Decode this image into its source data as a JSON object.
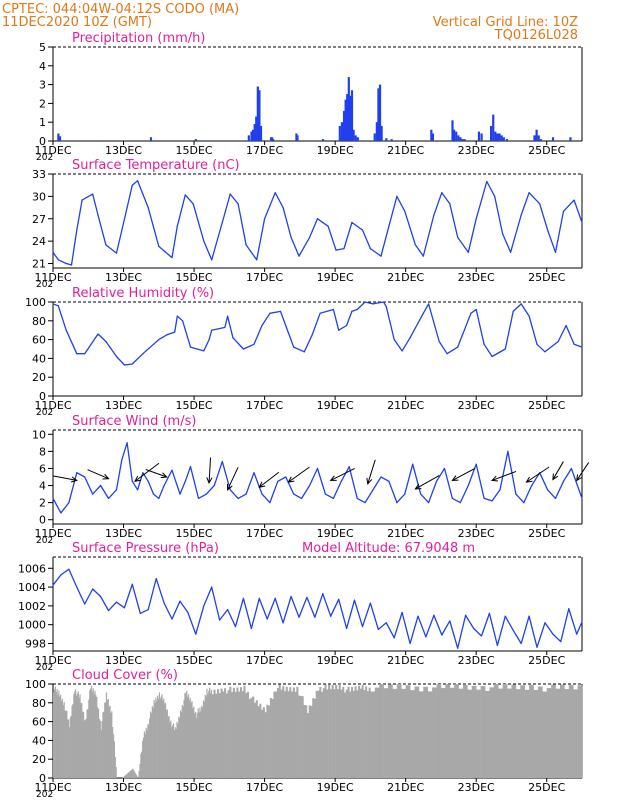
{
  "header": {
    "line1": "CPTEC:   044:04W-04:12S   CODO (MA)",
    "line2": "11DEC2020 10Z (GMT)",
    "grid_note": "Vertical Grid Line: 10Z",
    "run_code": "TQ0126L028"
  },
  "model_altitude": "Model Altitude: 67.9048 m",
  "colors": {
    "header_orange": "#e07818",
    "title_magenta": "#e0209a",
    "series_blue": "#2040ee",
    "cloud_gray": "#a8a8a8",
    "wind_arrow": "#000000"
  },
  "x_axis": {
    "ticks": [
      "11DEC",
      "13DEC",
      "15DEC",
      "17DEC",
      "19DEC",
      "21DEC",
      "23DEC",
      "25DEC"
    ],
    "year_fragment": "202"
  },
  "chart_data": [
    {
      "type": "bar",
      "title": "Precipitation (mm/h)",
      "ylim": [
        0,
        5
      ],
      "yticks": [
        "0",
        "1",
        "2",
        "3",
        "4",
        "5"
      ],
      "x": [
        0.1,
        0.13,
        1.85,
        2.7,
        3.7,
        3.75,
        3.78,
        3.81,
        3.84,
        3.87,
        3.9,
        3.93,
        4.12,
        4.14,
        4.16,
        4.6,
        4.62,
        5.1,
        5.42,
        5.46,
        5.5,
        5.53,
        5.56,
        5.59,
        5.62,
        5.65,
        5.68,
        5.72,
        5.76,
        6.08,
        6.12,
        6.15,
        6.18,
        6.21,
        6.3,
        6.4,
        7.15,
        7.18,
        7.55,
        7.58,
        7.62,
        7.66,
        7.7,
        7.74,
        7.78,
        8.05,
        8.1,
        8.28,
        8.32,
        8.36,
        8.4,
        8.44,
        8.48,
        8.52,
        8.58,
        9.1,
        9.14,
        9.18,
        9.22,
        9.45,
        9.78
      ],
      "values": [
        0.4,
        0.25,
        0.2,
        0.1,
        0.3,
        0.5,
        0.6,
        0.9,
        1.3,
        2.9,
        2.7,
        0.8,
        0.2,
        0.2,
        0.1,
        0.4,
        0.3,
        0.1,
        0.8,
        1.0,
        1.6,
        2.2,
        2.5,
        3.4,
        2.4,
        2.7,
        0.6,
        0.3,
        0.2,
        0.4,
        1.0,
        2.8,
        3.0,
        0.8,
        0.15,
        0.1,
        0.6,
        0.4,
        1.1,
        0.6,
        0.5,
        0.3,
        0.2,
        0.1,
        0.1,
        0.5,
        0.4,
        0.8,
        1.4,
        0.5,
        0.4,
        0.4,
        0.3,
        0.2,
        0.1,
        0.3,
        0.6,
        0.3,
        0.1,
        0.2,
        0.2
      ]
    },
    {
      "type": "line",
      "title": "Surface Temperature (nC)",
      "ylim": [
        20.4,
        33
      ],
      "yticks": [
        "21",
        "24",
        "27",
        "30",
        "33"
      ],
      "x": [
        0,
        0.1,
        0.25,
        0.35,
        0.45,
        0.55,
        0.75,
        0.85,
        1.0,
        1.2,
        1.4,
        1.5,
        1.6,
        1.8,
        2.0,
        2.25,
        2.35,
        2.5,
        2.65,
        2.85,
        3.0,
        3.2,
        3.35,
        3.5,
        3.65,
        3.85,
        4.0,
        4.2,
        4.35,
        4.5,
        4.65,
        4.85,
        5.0,
        5.2,
        5.35,
        5.5,
        5.65,
        5.85,
        6.0,
        6.2,
        6.35,
        6.5,
        6.65,
        6.85,
        7.0,
        7.2,
        7.35,
        7.5,
        7.65,
        7.85,
        8.0,
        8.2,
        8.35,
        8.5,
        8.65,
        8.85,
        9.0,
        9.2,
        9.35,
        9.5,
        9.65,
        9.85,
        10.0
      ],
      "values": [
        22.5,
        21.5,
        21.0,
        20.8,
        25.5,
        29.5,
        30.3,
        27.5,
        23.5,
        22.4,
        28.5,
        31.5,
        32.1,
        28.5,
        23.3,
        21.8,
        26.0,
        30.2,
        29.0,
        24.0,
        21.5,
        26.5,
        30.3,
        29.0,
        23.5,
        21.5,
        27.0,
        30.5,
        28.5,
        24.5,
        22.0,
        24.5,
        27.0,
        26.0,
        22.8,
        23.0,
        26.5,
        25.5,
        23.0,
        22.0,
        26.0,
        30.0,
        28.0,
        23.5,
        22.0,
        27.5,
        30.5,
        29.0,
        24.5,
        22.5,
        27.0,
        32.0,
        30.0,
        25.0,
        22.5,
        27.5,
        30.5,
        29.0,
        25.5,
        22.5,
        28.0,
        29.5,
        26.5
      ]
    },
    {
      "type": "line",
      "title": "Relative Humidity (%)",
      "ylim": [
        0,
        100
      ],
      "yticks": [
        "0",
        "20",
        "40",
        "60",
        "80",
        "100"
      ],
      "x": [
        0,
        0.1,
        0.25,
        0.45,
        0.6,
        0.85,
        1.0,
        1.2,
        1.35,
        1.5,
        1.7,
        1.9,
        2.0,
        2.15,
        2.3,
        2.35,
        2.45,
        2.6,
        2.85,
        2.95,
        3.0,
        3.25,
        3.3,
        3.4,
        3.6,
        3.8,
        3.95,
        4.1,
        4.3,
        4.55,
        4.75,
        4.9,
        5.05,
        5.3,
        5.4,
        5.55,
        5.65,
        5.75,
        5.9,
        6.05,
        6.15,
        6.25,
        6.3,
        6.45,
        6.6,
        6.75,
        7.0,
        7.1,
        7.3,
        7.45,
        7.65,
        7.9,
        8.0,
        8.15,
        8.3,
        8.55,
        8.7,
        8.85,
        9.0,
        9.15,
        9.3,
        9.55,
        9.7,
        9.85,
        10.0
      ],
      "values": [
        98,
        96,
        70,
        45,
        45,
        66,
        58,
        42,
        33,
        34,
        45,
        55,
        60,
        65,
        68,
        85,
        80,
        52,
        48,
        60,
        70,
        73,
        85,
        62,
        50,
        55,
        75,
        88,
        90,
        52,
        47,
        65,
        88,
        92,
        70,
        75,
        90,
        92,
        100,
        98,
        99,
        100,
        95,
        60,
        48,
        62,
        88,
        98,
        58,
        45,
        52,
        88,
        92,
        55,
        42,
        50,
        90,
        98,
        85,
        55,
        47,
        58,
        75,
        55,
        52
      ],
      "extra_y": [
        66,
        90,
        60
      ]
    },
    {
      "type": "line",
      "title": "Surface Wind (m/s)",
      "ylim": [
        -0.5,
        10.5
      ],
      "yticks": [
        "0",
        "2",
        "4",
        "6",
        "8",
        "10"
      ],
      "x": [
        0,
        0.15,
        0.3,
        0.45,
        0.6,
        0.75,
        0.9,
        1.05,
        1.2,
        1.3,
        1.4,
        1.5,
        1.6,
        1.7,
        1.8,
        1.9,
        2.0,
        2.1,
        2.25,
        2.4,
        2.5,
        2.6,
        2.75,
        2.9,
        3.05,
        3.2,
        3.35,
        3.5,
        3.65,
        3.8,
        3.95,
        4.1,
        4.25,
        4.4,
        4.55,
        4.7,
        4.85,
        5.0,
        5.15,
        5.3,
        5.45,
        5.6,
        5.75,
        5.9,
        6.05,
        6.2,
        6.35,
        6.5,
        6.65,
        6.8,
        6.95,
        7.1,
        7.25,
        7.4,
        7.55,
        7.7,
        7.85,
        8.0,
        8.15,
        8.3,
        8.45,
        8.6,
        8.75,
        8.9,
        9.05,
        9.2,
        9.35,
        9.5,
        9.65,
        9.8,
        10.0
      ],
      "values": [
        2.5,
        0.8,
        2.0,
        5.5,
        5.0,
        3.0,
        4.0,
        2.5,
        3.5,
        7.0,
        9.0,
        4.5,
        3.5,
        5.5,
        4.5,
        3.0,
        2.5,
        4.0,
        5.8,
        3.0,
        4.5,
        6.2,
        2.5,
        3.0,
        4.0,
        6.8,
        3.5,
        2.5,
        3.0,
        5.5,
        3.0,
        2.0,
        4.5,
        5.0,
        3.0,
        2.5,
        4.0,
        6.0,
        3.0,
        2.5,
        4.5,
        6.2,
        2.5,
        2.0,
        3.5,
        5.0,
        4.5,
        2.0,
        3.0,
        6.5,
        3.0,
        2.0,
        4.5,
        6.0,
        2.5,
        2.0,
        4.0,
        6.5,
        2.5,
        2.2,
        3.5,
        8.0,
        3.0,
        2.0,
        4.0,
        5.5,
        3.5,
        2.5,
        4.5,
        6.0,
        2.5
      ],
      "arrows": [
        {
          "x": 0.45,
          "y": 4.6,
          "u": -0.8,
          "v": 0.15
        },
        {
          "x": 1.05,
          "y": 4.8,
          "u": -0.7,
          "v": 0.3
        },
        {
          "x": 1.55,
          "y": 4.5,
          "u": 0.8,
          "v": 0.6
        },
        {
          "x": 2.15,
          "y": 5.0,
          "u": -0.7,
          "v": 0.25
        },
        {
          "x": 2.95,
          "y": 4.3,
          "u": 0.05,
          "v": 0.85
        },
        {
          "x": 3.3,
          "y": 3.5,
          "u": 0.35,
          "v": 0.75
        },
        {
          "x": 3.9,
          "y": 3.8,
          "u": 0.65,
          "v": 0.5
        },
        {
          "x": 4.45,
          "y": 4.4,
          "u": 0.7,
          "v": 0.5
        },
        {
          "x": 5.25,
          "y": 4.6,
          "u": 0.8,
          "v": 0.4
        },
        {
          "x": 5.95,
          "y": 4.2,
          "u": 0.25,
          "v": 0.8
        },
        {
          "x": 6.85,
          "y": 3.6,
          "u": 0.8,
          "v": 0.45
        },
        {
          "x": 7.55,
          "y": 4.6,
          "u": 0.75,
          "v": 0.4
        },
        {
          "x": 8.3,
          "y": 4.6,
          "u": 0.8,
          "v": 0.3
        },
        {
          "x": 8.95,
          "y": 4.4,
          "u": 0.75,
          "v": 0.5
        },
        {
          "x": 9.45,
          "y": 4.7,
          "u": 0.35,
          "v": 0.6
        },
        {
          "x": 9.9,
          "y": 4.6,
          "u": 0.4,
          "v": 0.6
        }
      ]
    },
    {
      "type": "line",
      "title": "Surface Pressure (hPa)",
      "ylim": [
        997.2,
        1007.2
      ],
      "yticks": [
        "998",
        "1000",
        "1002",
        "1004",
        "1006"
      ],
      "x": [
        0,
        0.15,
        0.3,
        0.45,
        0.6,
        0.75,
        0.9,
        1.05,
        1.2,
        1.35,
        1.5,
        1.65,
        1.8,
        1.95,
        2.1,
        2.25,
        2.4,
        2.55,
        2.7,
        2.85,
        3.0,
        3.15,
        3.3,
        3.45,
        3.6,
        3.75,
        3.9,
        4.05,
        4.2,
        4.35,
        4.5,
        4.65,
        4.8,
        4.95,
        5.1,
        5.25,
        5.4,
        5.55,
        5.7,
        5.85,
        6.0,
        6.15,
        6.3,
        6.45,
        6.6,
        6.75,
        6.9,
        7.05,
        7.2,
        7.35,
        7.5,
        7.65,
        7.8,
        7.95,
        8.1,
        8.25,
        8.4,
        8.55,
        8.7,
        8.85,
        9.0,
        9.15,
        9.3,
        9.45,
        9.6,
        9.75,
        9.9,
        10.0
      ],
      "values": [
        1004.2,
        1005.3,
        1005.9,
        1004.0,
        1002.2,
        1003.8,
        1003.0,
        1001.5,
        1002.4,
        1001.8,
        1004.3,
        1001.2,
        1001.6,
        1004.9,
        1002.3,
        1000.6,
        1002.5,
        1001.3,
        999.0,
        1002.0,
        1004.0,
        1000.5,
        1001.6,
        999.8,
        1002.8,
        999.6,
        1002.8,
        1000.6,
        1002.8,
        1000.2,
        1003.0,
        1000.8,
        1002.9,
        1000.8,
        1003.3,
        1000.9,
        1002.7,
        999.6,
        1002.6,
        999.8,
        1002.3,
        999.5,
        1000.2,
        998.6,
        1001.3,
        998.0,
        1000.9,
        998.7,
        1001.0,
        998.9,
        1000.4,
        997.5,
        1001.0,
        999.6,
        998.8,
        1001.2,
        997.8,
        1000.9,
        999.4,
        998.0,
        1000.9,
        997.6,
        1000.2,
        999.0,
        998.2,
        1001.7,
        999.0,
        1000.3
      ]
    },
    {
      "type": "area",
      "title": "Cloud Cover (%)",
      "ylim": [
        0,
        100
      ],
      "yticks": [
        "0",
        "20",
        "40",
        "60",
        "80",
        "100"
      ],
      "x": [
        0,
        0.1,
        0.2,
        0.3,
        0.4,
        0.5,
        0.6,
        0.7,
        0.8,
        0.9,
        1.0,
        1.1,
        1.2,
        1.3,
        1.4,
        1.5,
        1.6,
        1.7,
        1.8,
        1.9,
        2.0,
        2.1,
        2.2,
        2.3,
        2.4,
        2.5,
        2.6,
        2.7,
        2.8,
        2.9,
        3.0,
        3.2,
        3.4,
        3.6,
        3.8,
        4.0,
        4.2,
        4.4,
        4.6,
        4.8,
        5.0,
        5.2,
        5.4,
        5.6,
        5.8,
        6.0,
        6.5,
        7.0,
        7.5,
        8.0,
        8.5,
        9.0,
        9.5,
        10.0
      ],
      "values": [
        95,
        90,
        80,
        55,
        95,
        85,
        60,
        95,
        90,
        55,
        88,
        70,
        0,
        0,
        5,
        10,
        0,
        45,
        60,
        80,
        90,
        80,
        62,
        50,
        70,
        90,
        82,
        68,
        74,
        94,
        90,
        95,
        92,
        96,
        80,
        72,
        96,
        94,
        96,
        70,
        96,
        95,
        98,
        92,
        97,
        96,
        97,
        96,
        97,
        97,
        96,
        97,
        95,
        97
      ]
    }
  ]
}
